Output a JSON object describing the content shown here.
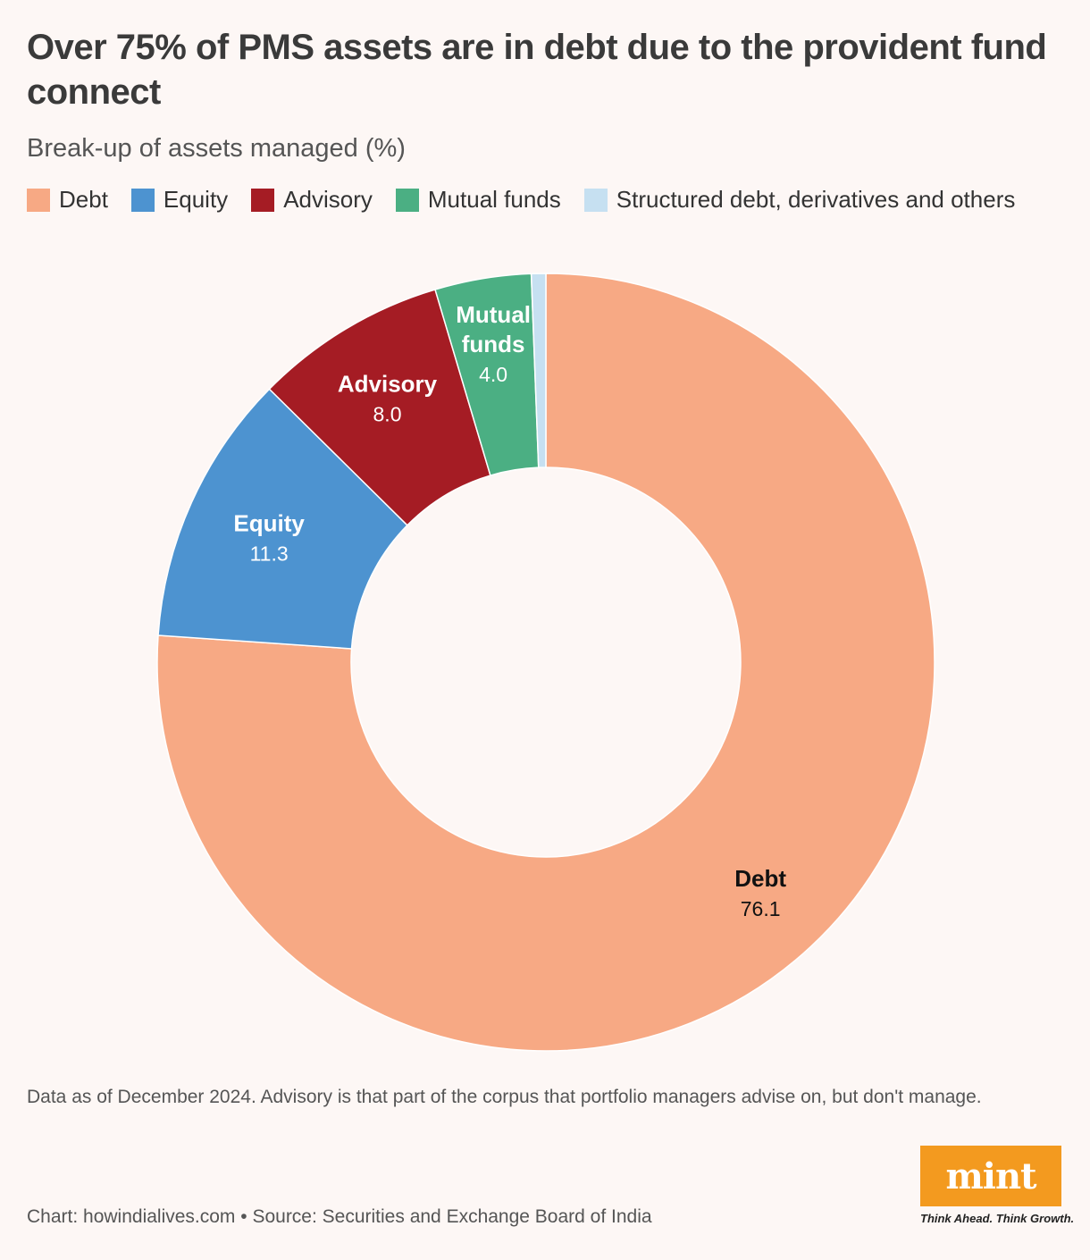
{
  "title": "Over 75% of PMS assets are in debt due to the provident fund connect",
  "subtitle": "Break-up of assets managed (%)",
  "legend": [
    {
      "label": "Debt",
      "color": "#f7a984"
    },
    {
      "label": "Equity",
      "color": "#4d93d0"
    },
    {
      "label": "Advisory",
      "color": "#a51c24"
    },
    {
      "label": "Mutual funds",
      "color": "#4baf83"
    },
    {
      "label": "Structured debt, derivatives and others",
      "color": "#c6e0f1"
    }
  ],
  "chart_data": {
    "type": "pie",
    "variant": "donut",
    "title": "Over 75% of PMS assets are in debt due to the provident fund connect",
    "subtitle": "Break-up of assets managed (%)",
    "series": [
      {
        "name": "Debt",
        "value": 76.1,
        "value_label": "76.1",
        "color": "#f7a984",
        "label_color": "#111111",
        "labels": [
          "Debt"
        ]
      },
      {
        "name": "Equity",
        "value": 11.3,
        "value_label": "11.3",
        "color": "#4d93d0",
        "label_color": "#ffffff",
        "labels": [
          "Equity"
        ]
      },
      {
        "name": "Advisory",
        "value": 8.0,
        "value_label": "8.0",
        "color": "#a51c24",
        "label_color": "#ffffff",
        "labels": [
          "Advisory"
        ]
      },
      {
        "name": "Mutual funds",
        "value": 4.0,
        "value_label": "4.0",
        "color": "#4baf83",
        "label_color": "#ffffff",
        "labels": [
          "Mutual",
          "funds"
        ]
      },
      {
        "name": "Structured debt, derivatives and others",
        "value": 0.6,
        "value_label": "",
        "color": "#c6e0f1",
        "label_color": "#ffffff",
        "labels": []
      }
    ],
    "legend_position": "top-left"
  },
  "footnote": "Data as of December 2024. Advisory is that part of the corpus that portfolio managers advise on, but don't manage.",
  "source": "Chart: howindialives.com • Source: Securities and Exchange Board of India",
  "logo": {
    "text": "mint",
    "tagline": "Think Ahead. Think Growth."
  }
}
